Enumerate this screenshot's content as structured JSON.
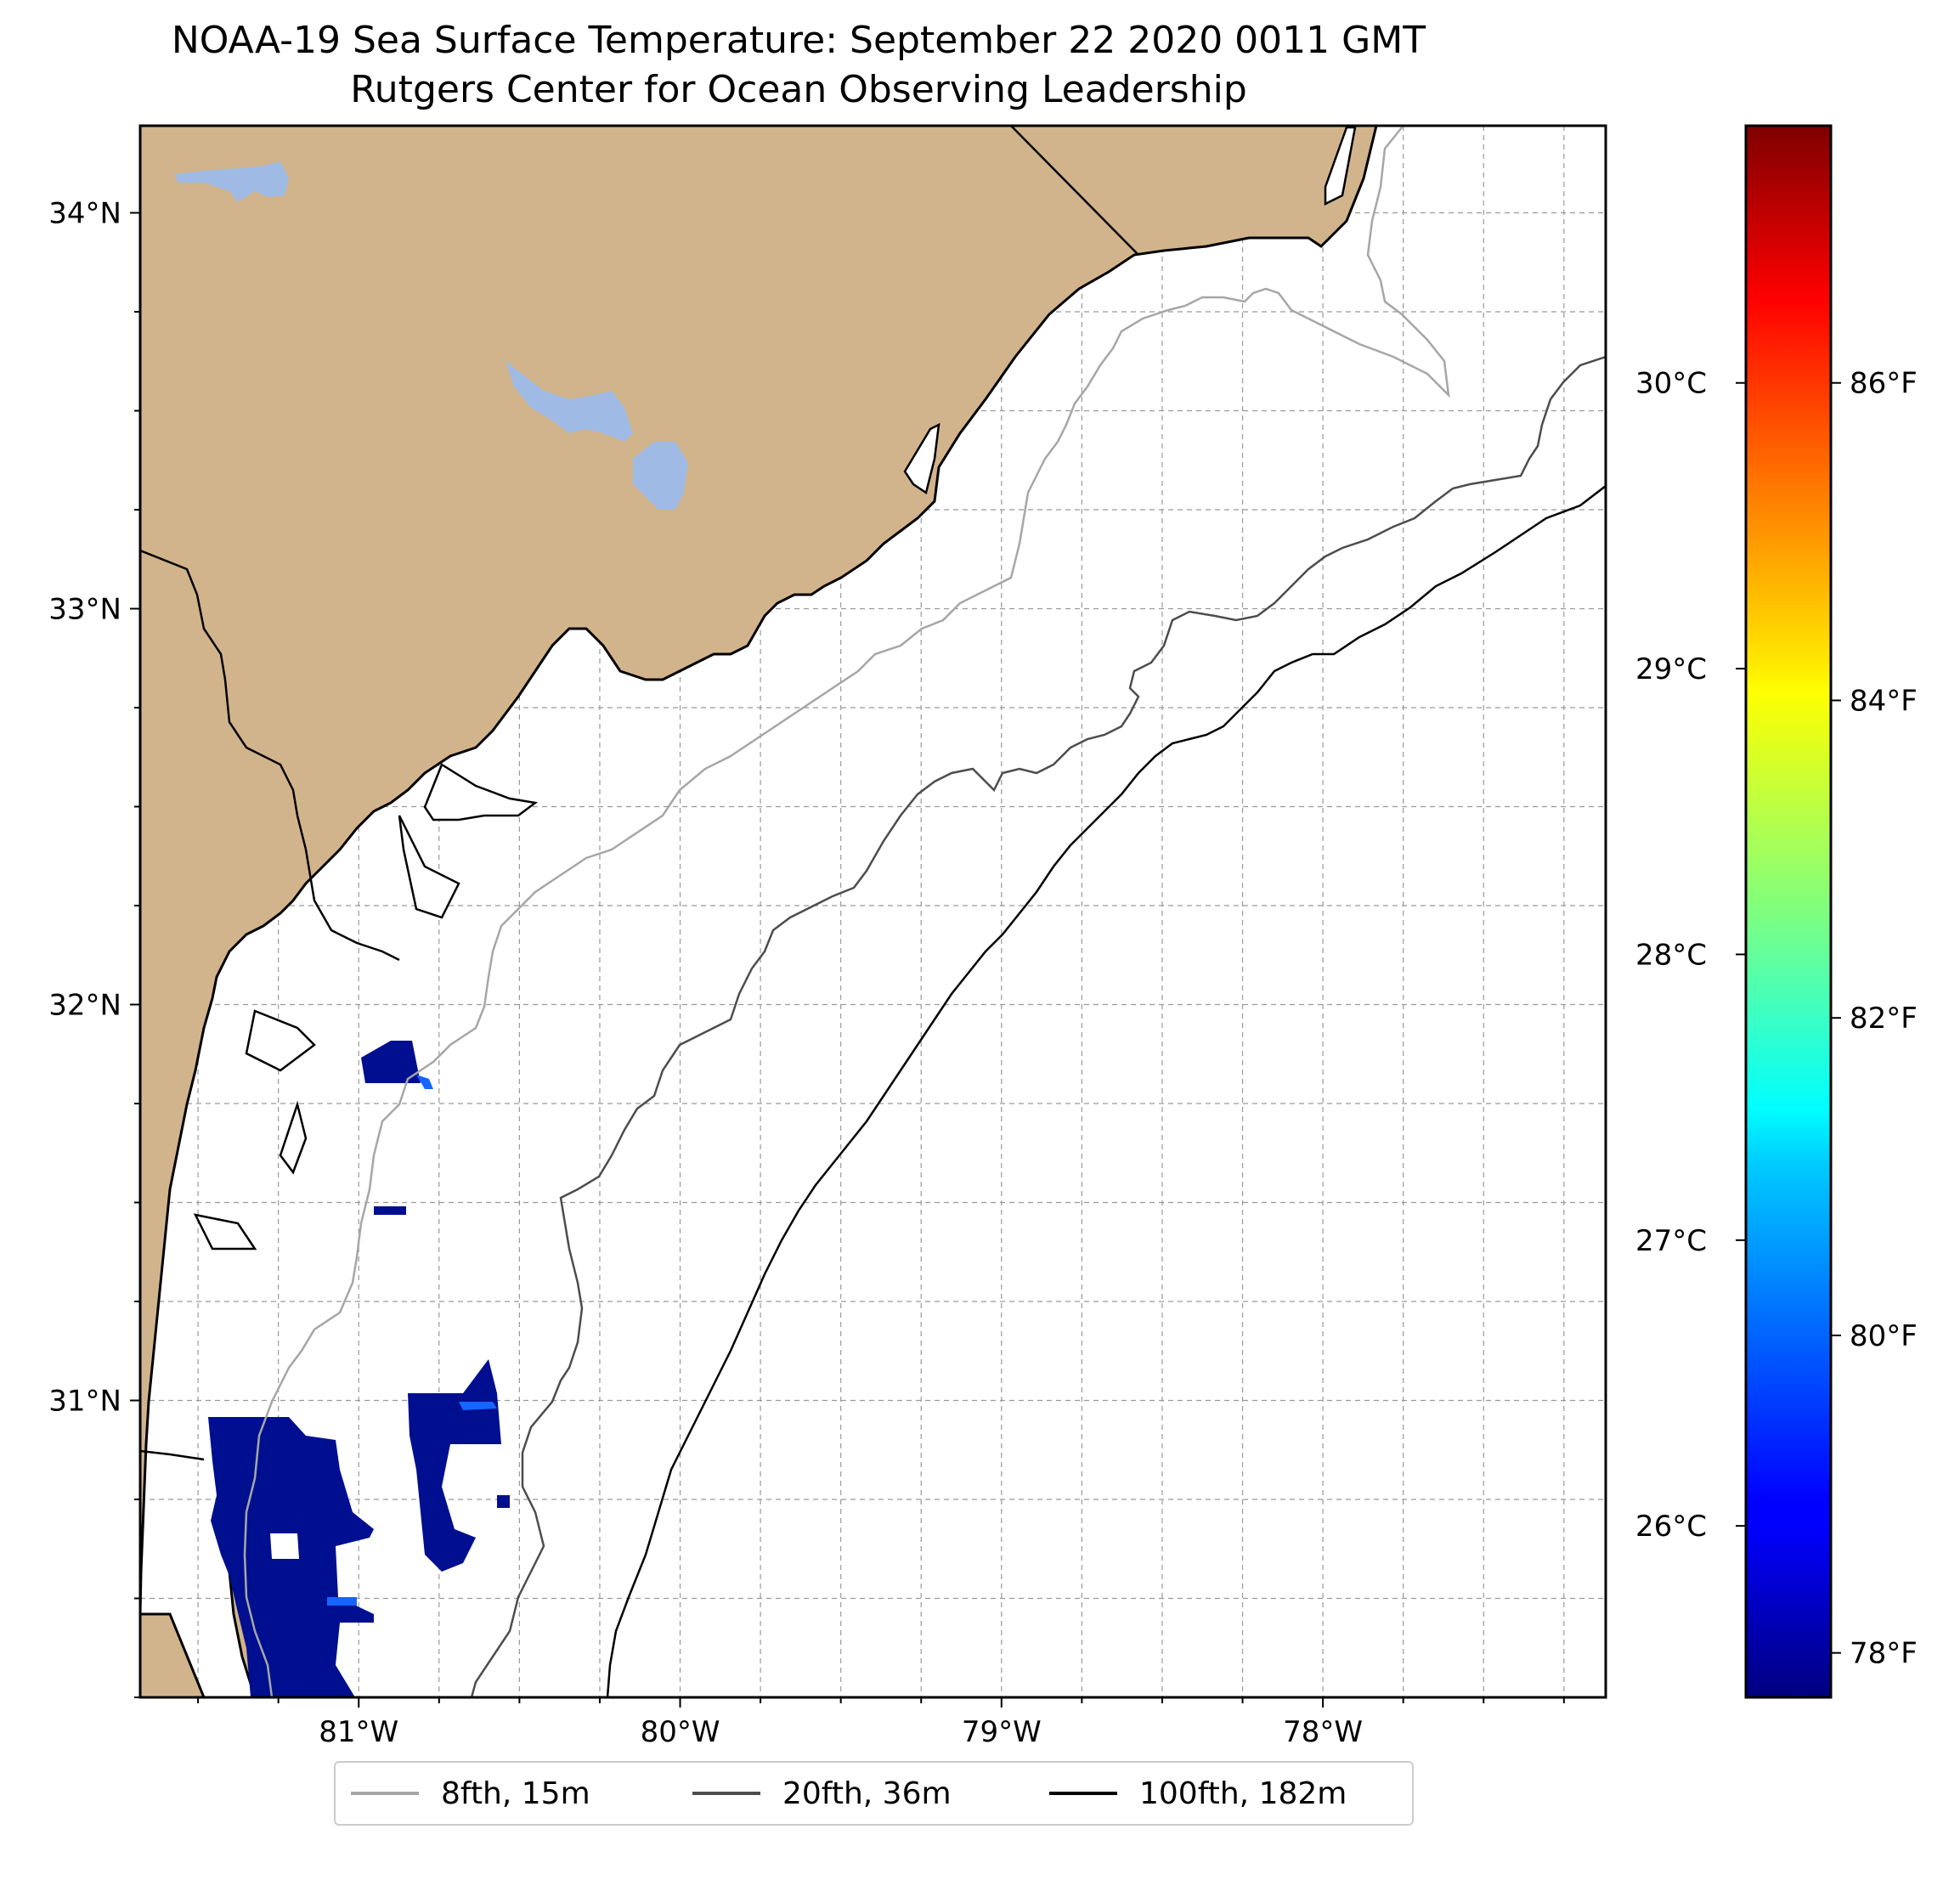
{
  "title": "NOAA-19 Sea Surface Temperature: September 22 2020 0011 GMT",
  "subtitle": "Rutgers Center for Ocean Observing Leadership",
  "colors": {
    "land": "#d2b48c",
    "lakes": "#9fbbe5",
    "sst_cold": "#000f8f",
    "sst_edge": "#1565ff",
    "iso_8fth": "#a6a6a6",
    "iso_20fth": "#4d4d4d",
    "iso_100fth": "#000000"
  },
  "map": {
    "lon_range": [
      -81.68,
      -77.12
    ],
    "lat_range": [
      30.25,
      34.22
    ],
    "lat_ticks": [
      {
        "value": 34,
        "label": "34°N"
      },
      {
        "value": 33,
        "label": "33°N"
      },
      {
        "value": 32,
        "label": "32°N"
      },
      {
        "value": 31,
        "label": "31°N"
      }
    ],
    "lon_ticks": [
      {
        "value": -81,
        "label": "81°W"
      },
      {
        "value": -80,
        "label": "80°W"
      },
      {
        "value": -79,
        "label": "79°W"
      },
      {
        "value": -78,
        "label": "78°W"
      }
    ],
    "grid": true
  },
  "colorbar": {
    "celsius": [
      {
        "value": 30,
        "label": "30°C"
      },
      {
        "value": 29,
        "label": "29°C"
      },
      {
        "value": 28,
        "label": "28°C"
      },
      {
        "value": 27,
        "label": "27°C"
      },
      {
        "value": 26,
        "label": "26°C"
      }
    ],
    "fahrenheit": [
      {
        "value": 86,
        "label": "86°F"
      },
      {
        "value": 84,
        "label": "84°F"
      },
      {
        "value": 82,
        "label": "82°F"
      },
      {
        "value": 80,
        "label": "80°F"
      },
      {
        "value": 78,
        "label": "78°F"
      }
    ],
    "range_c": [
      25.4,
      30.9
    ],
    "colormap": "jet"
  },
  "legend": [
    {
      "label": "8fth, 15m",
      "color": "#a6a6a6"
    },
    {
      "label": "20fth, 36m",
      "color": "#4d4d4d"
    },
    {
      "label": "100fth, 182m",
      "color": "#000000"
    }
  ]
}
